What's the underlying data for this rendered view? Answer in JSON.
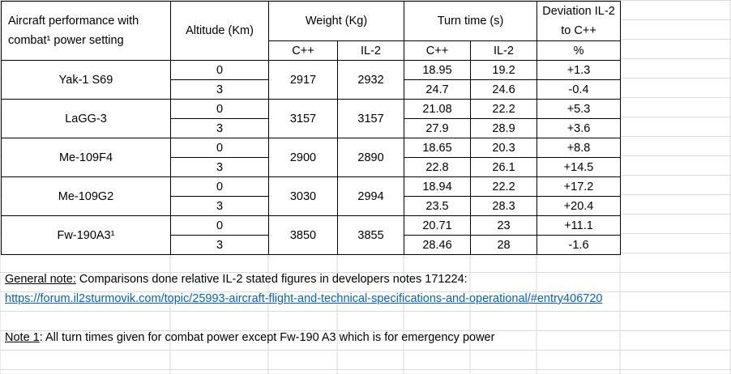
{
  "header": {
    "aircraft_line1": "Aircraft performance with",
    "aircraft_line2": "combat¹ power setting",
    "altitude": "Altitude (Km)",
    "weight": "Weight (Kg)",
    "turn_time": "Turn time  (s)",
    "deviation_line1": "Deviation IL-2",
    "deviation_line2": "to C++",
    "sub_weight_cpp": "C++",
    "sub_weight_il2": "IL-2",
    "sub_turn_cpp": "C++",
    "sub_turn_il2": "IL-2",
    "sub_deviation": "%"
  },
  "rows": [
    {
      "aircraft": "Yak-1 S69",
      "weight_cpp": "2917",
      "weight_il2": "2932",
      "alts": [
        {
          "altitude": "0",
          "turn_cpp": "18.95",
          "turn_il2": "19.2",
          "deviation": "+1.3"
        },
        {
          "altitude": "3",
          "turn_cpp": "24.7",
          "turn_il2": "24.6",
          "deviation": "-0.4"
        }
      ]
    },
    {
      "aircraft": "LaGG-3",
      "weight_cpp": "3157",
      "weight_il2": "3157",
      "alts": [
        {
          "altitude": "0",
          "turn_cpp": "21.08",
          "turn_il2": "22.2",
          "deviation": "+5.3"
        },
        {
          "altitude": "3",
          "turn_cpp": "27.9",
          "turn_il2": "28.9",
          "deviation": "+3.6"
        }
      ]
    },
    {
      "aircraft": "Me-109F4",
      "weight_cpp": "2900",
      "weight_il2": "2890",
      "alts": [
        {
          "altitude": "0",
          "turn_cpp": "18.65",
          "turn_il2": "20.3",
          "deviation": "+8.8"
        },
        {
          "altitude": "3",
          "turn_cpp": "22.8",
          "turn_il2": "26.1",
          "deviation": "+14.5"
        }
      ]
    },
    {
      "aircraft": "Me-109G2",
      "weight_cpp": "3030",
      "weight_il2": "2994",
      "alts": [
        {
          "altitude": "0",
          "turn_cpp": "18.94",
          "turn_il2": "22.2",
          "deviation": "+17.2"
        },
        {
          "altitude": "3",
          "turn_cpp": "23.5",
          "turn_il2": "28.3",
          "deviation": "+20.4"
        }
      ]
    },
    {
      "aircraft": "Fw-190A3¹",
      "weight_cpp": "3850",
      "weight_il2": "3855",
      "alts": [
        {
          "altitude": "0",
          "turn_cpp": "20.71",
          "turn_il2": "23",
          "deviation": "+11.1"
        },
        {
          "altitude": "3",
          "turn_cpp": "28.46",
          "turn_il2": "28",
          "deviation": "-1.6"
        }
      ]
    }
  ],
  "notes": {
    "general_label": "General note:",
    "general_text": " Comparisons done relative IL-2 stated figures in developers notes 171224:",
    "link": "https://forum.il2sturmovik.com/topic/25993-aircraft-flight-and-technical-specifications-and-operational/#entry406720",
    "note1_label": "Note 1",
    "note1_text": ": All turn times given for combat power except Fw-190 A3 which is for emergency power"
  }
}
